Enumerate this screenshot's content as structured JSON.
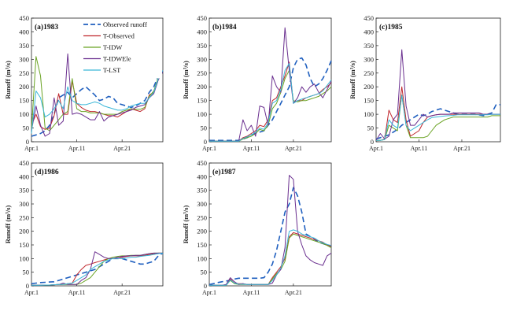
{
  "series_styles": [
    {
      "name": "Observed runoff",
      "color": "#1f5fbf",
      "dash": "7,4",
      "width": 1.6
    },
    {
      "name": "T-Observed",
      "color": "#c0272d",
      "dash": "",
      "width": 1
    },
    {
      "name": "T-IDW",
      "color": "#6aa324",
      "dash": "",
      "width": 1
    },
    {
      "name": "T-IDWEle",
      "color": "#6a2f8f",
      "dash": "",
      "width": 1
    },
    {
      "name": "T-LST",
      "color": "#3ab7d8",
      "dash": "",
      "width": 1
    }
  ],
  "chart_data": [
    {
      "type": "line",
      "title": "(a)1983",
      "ylabel": "Runoff (m³/s)",
      "ylim": [
        0,
        450
      ],
      "yticks": [
        "0",
        "50",
        "100",
        "150",
        "200",
        "250",
        "300",
        "350",
        "400",
        "450"
      ],
      "xticks": [
        "Apr.1",
        "Apr.11",
        "Apr.21"
      ],
      "legend": "top-right",
      "series": [
        {
          "name": "Observed runoff",
          "values": [
            20,
            25,
            30,
            40,
            60,
            100,
            160,
            170,
            180,
            160,
            175,
            190,
            200,
            185,
            170,
            150,
            155,
            165,
            160,
            140,
            135,
            130,
            125,
            130,
            140,
            150,
            180,
            200,
            240,
            255
          ]
        },
        {
          "name": "T-Observed",
          "values": [
            60,
            100,
            55,
            45,
            50,
            95,
            175,
            100,
            100,
            220,
            140,
            125,
            115,
            110,
            110,
            105,
            100,
            95,
            95,
            90,
            100,
            110,
            120,
            115,
            110,
            120,
            170,
            180,
            230,
            260
          ]
        },
        {
          "name": "T-IDW",
          "values": [
            40,
            310,
            240,
            50,
            40,
            60,
            80,
            100,
            110,
            230,
            120,
            110,
            110,
            105,
            105,
            105,
            100,
            100,
            100,
            100,
            110,
            115,
            120,
            118,
            118,
            125,
            165,
            185,
            235,
            255
          ]
        },
        {
          "name": "T-IDWEle",
          "values": [
            40,
            130,
            60,
            20,
            30,
            160,
            60,
            75,
            320,
            100,
            105,
            100,
            90,
            80,
            80,
            110,
            75,
            90,
            95,
            100,
            105,
            110,
            115,
            125,
            130,
            135,
            160,
            175,
            225,
            255
          ]
        },
        {
          "name": "T-LST",
          "values": [
            30,
            185,
            160,
            90,
            100,
            120,
            150,
            120,
            200,
            150,
            140,
            135,
            135,
            140,
            145,
            140,
            130,
            125,
            120,
            115,
            115,
            120,
            130,
            135,
            140,
            140,
            160,
            180,
            230,
            260
          ]
        }
      ]
    },
    {
      "type": "line",
      "title": "(b)1984",
      "ylabel": "Runoff (m³/s)",
      "ylim": [
        0,
        450
      ],
      "yticks": [
        "0",
        "50",
        "100",
        "150",
        "200",
        "250",
        "300",
        "350",
        "400",
        "450"
      ],
      "xticks": [
        "Apr.1",
        "Apr.11",
        "Apr.21"
      ],
      "series": [
        {
          "name": "Observed runoff",
          "values": [
            5,
            5,
            5,
            5,
            5,
            5,
            5,
            5,
            10,
            15,
            25,
            30,
            35,
            40,
            60,
            80,
            110,
            140,
            170,
            200,
            270,
            300,
            305,
            280,
            230,
            200,
            210,
            230,
            260,
            295
          ]
        },
        {
          "name": "T-Observed",
          "values": [
            2,
            2,
            2,
            2,
            2,
            2,
            2,
            2,
            15,
            20,
            30,
            40,
            60,
            55,
            80,
            150,
            160,
            200,
            240,
            290,
            140,
            150,
            150,
            160,
            165,
            170,
            175,
            190,
            200,
            215
          ]
        },
        {
          "name": "T-IDW",
          "values": [
            2,
            2,
            2,
            2,
            2,
            2,
            2,
            2,
            10,
            15,
            20,
            30,
            45,
            40,
            60,
            120,
            140,
            180,
            230,
            260,
            150,
            145,
            150,
            150,
            155,
            160,
            165,
            175,
            185,
            200
          ]
        },
        {
          "name": "T-IDWEle",
          "values": [
            2,
            2,
            2,
            2,
            2,
            2,
            2,
            2,
            80,
            40,
            60,
            20,
            130,
            125,
            60,
            240,
            200,
            180,
            415,
            260,
            140,
            160,
            200,
            180,
            200,
            210,
            180,
            160,
            190,
            220
          ]
        },
        {
          "name": "T-LST",
          "values": [
            2,
            2,
            2,
            2,
            2,
            2,
            2,
            2,
            12,
            18,
            25,
            35,
            50,
            45,
            70,
            140,
            150,
            190,
            260,
            285,
            140,
            150,
            155,
            160,
            165,
            170,
            175,
            185,
            205,
            225
          ]
        }
      ]
    },
    {
      "type": "line",
      "title": "(c)1985",
      "ylabel": "Runoff (m³/s)",
      "ylim": [
        0,
        450
      ],
      "yticks": [
        "0",
        "50",
        "100",
        "150",
        "200",
        "250",
        "300",
        "350",
        "400",
        "450"
      ],
      "xticks": [
        "Apr.1",
        "Apr.11",
        "Apr.21"
      ],
      "series": [
        {
          "name": "Observed runoff",
          "values": [
            10,
            15,
            20,
            25,
            35,
            45,
            60,
            70,
            80,
            90,
            100,
            95,
            100,
            110,
            115,
            120,
            115,
            110,
            105,
            100,
            100,
            100,
            100,
            100,
            98,
            95,
            100,
            105,
            135,
            135
          ]
        },
        {
          "name": "T-Observed",
          "values": [
            5,
            5,
            10,
            115,
            80,
            70,
            200,
            80,
            20,
            30,
            40,
            70,
            90,
            95,
            98,
            100,
            100,
            100,
            100,
            100,
            100,
            100,
            100,
            100,
            100,
            100,
            100,
            100,
            100,
            100
          ]
        },
        {
          "name": "T-IDW",
          "values": [
            5,
            5,
            8,
            60,
            50,
            40,
            170,
            60,
            15,
            15,
            15,
            15,
            20,
            40,
            60,
            70,
            80,
            85,
            90,
            90,
            90,
            90,
            90,
            90,
            90,
            90,
            90,
            95,
            95,
            95
          ]
        },
        {
          "name": "T-IDWEle",
          "values": [
            5,
            30,
            10,
            20,
            80,
            100,
            335,
            130,
            60,
            60,
            80,
            100,
            90,
            95,
            98,
            100,
            100,
            100,
            105,
            105,
            105,
            105,
            105,
            105,
            105,
            100,
            100,
            100,
            100,
            100
          ]
        },
        {
          "name": "T-LST",
          "values": [
            5,
            5,
            8,
            80,
            60,
            50,
            170,
            60,
            40,
            50,
            60,
            70,
            80,
            88,
            90,
            92,
            94,
            95,
            96,
            98,
            98,
            98,
            98,
            98,
            98,
            98,
            98,
            100,
            100,
            100
          ]
        }
      ]
    },
    {
      "type": "line",
      "title": "(d)1986",
      "ylabel": "Runoff (m³/s)",
      "ylim": [
        0,
        450
      ],
      "yticks": [
        "0",
        "50",
        "100",
        "150",
        "200",
        "250",
        "300",
        "350",
        "400",
        "450"
      ],
      "xticks": [
        "Apr.1",
        "Apr.11",
        "Apr.21"
      ],
      "series": [
        {
          "name": "Observed runoff",
          "values": [
            8,
            10,
            12,
            13,
            14,
            15,
            20,
            25,
            30,
            35,
            40,
            45,
            50,
            55,
            60,
            70,
            80,
            90,
            100,
            100,
            100,
            95,
            90,
            85,
            80,
            80,
            85,
            90,
            110,
            120
          ]
        },
        {
          "name": "T-Observed",
          "values": [
            2,
            2,
            2,
            3,
            3,
            4,
            5,
            5,
            8,
            10,
            40,
            60,
            75,
            80,
            85,
            90,
            95,
            100,
            100,
            100,
            105,
            108,
            110,
            110,
            110,
            112,
            115,
            118,
            120,
            120
          ]
        },
        {
          "name": "T-IDW",
          "values": [
            2,
            2,
            2,
            3,
            3,
            4,
            5,
            5,
            5,
            5,
            5,
            10,
            20,
            30,
            50,
            70,
            90,
            100,
            105,
            108,
            110,
            110,
            112,
            112,
            112,
            115,
            118,
            120,
            120,
            120
          ]
        },
        {
          "name": "T-IDWEle",
          "values": [
            2,
            2,
            2,
            3,
            3,
            4,
            5,
            10,
            5,
            5,
            5,
            20,
            30,
            60,
            125,
            115,
            105,
            100,
            100,
            105,
            108,
            110,
            110,
            112,
            112,
            115,
            118,
            120,
            120,
            120
          ]
        },
        {
          "name": "T-LST",
          "values": [
            2,
            2,
            2,
            3,
            3,
            4,
            5,
            5,
            8,
            10,
            20,
            30,
            40,
            60,
            70,
            80,
            90,
            95,
            100,
            100,
            100,
            102,
            105,
            105,
            108,
            110,
            112,
            115,
            118,
            120
          ]
        }
      ]
    },
    {
      "type": "line",
      "title": "(e)1987",
      "ylabel": "Runoff (m³/s)",
      "ylim": [
        0,
        450
      ],
      "yticks": [
        "0",
        "50",
        "100",
        "150",
        "200",
        "250",
        "300",
        "350",
        "400",
        "450"
      ],
      "xticks": [
        "Apr.1",
        "Apr.11",
        "Apr.21"
      ],
      "series": [
        {
          "name": "Observed runoff",
          "values": [
            5,
            8,
            12,
            15,
            18,
            20,
            25,
            28,
            28,
            28,
            28,
            28,
            28,
            30,
            50,
            80,
            130,
            200,
            270,
            300,
            360,
            330,
            270,
            190,
            180,
            170,
            160,
            155,
            150,
            145
          ]
        },
        {
          "name": "T-Observed",
          "values": [
            2,
            2,
            2,
            2,
            2,
            25,
            10,
            8,
            8,
            5,
            5,
            5,
            5,
            5,
            5,
            30,
            50,
            70,
            100,
            180,
            195,
            190,
            185,
            180,
            175,
            170,
            165,
            160,
            150,
            145
          ]
        },
        {
          "name": "T-IDW",
          "values": [
            2,
            2,
            2,
            2,
            2,
            20,
            8,
            5,
            5,
            5,
            5,
            5,
            5,
            5,
            5,
            25,
            45,
            60,
            90,
            175,
            190,
            185,
            180,
            175,
            170,
            165,
            160,
            155,
            148,
            140
          ]
        },
        {
          "name": "T-IDWEle",
          "values": [
            2,
            2,
            2,
            2,
            5,
            30,
            15,
            5,
            8,
            5,
            5,
            5,
            5,
            5,
            5,
            10,
            40,
            60,
            140,
            405,
            390,
            200,
            150,
            110,
            95,
            85,
            80,
            75,
            110,
            120
          ]
        },
        {
          "name": "T-LST",
          "values": [
            2,
            2,
            2,
            2,
            2,
            22,
            10,
            6,
            6,
            5,
            5,
            5,
            5,
            5,
            5,
            20,
            40,
            65,
            110,
            200,
            205,
            200,
            190,
            185,
            180,
            175,
            165,
            158,
            152,
            148
          ]
        }
      ]
    }
  ]
}
